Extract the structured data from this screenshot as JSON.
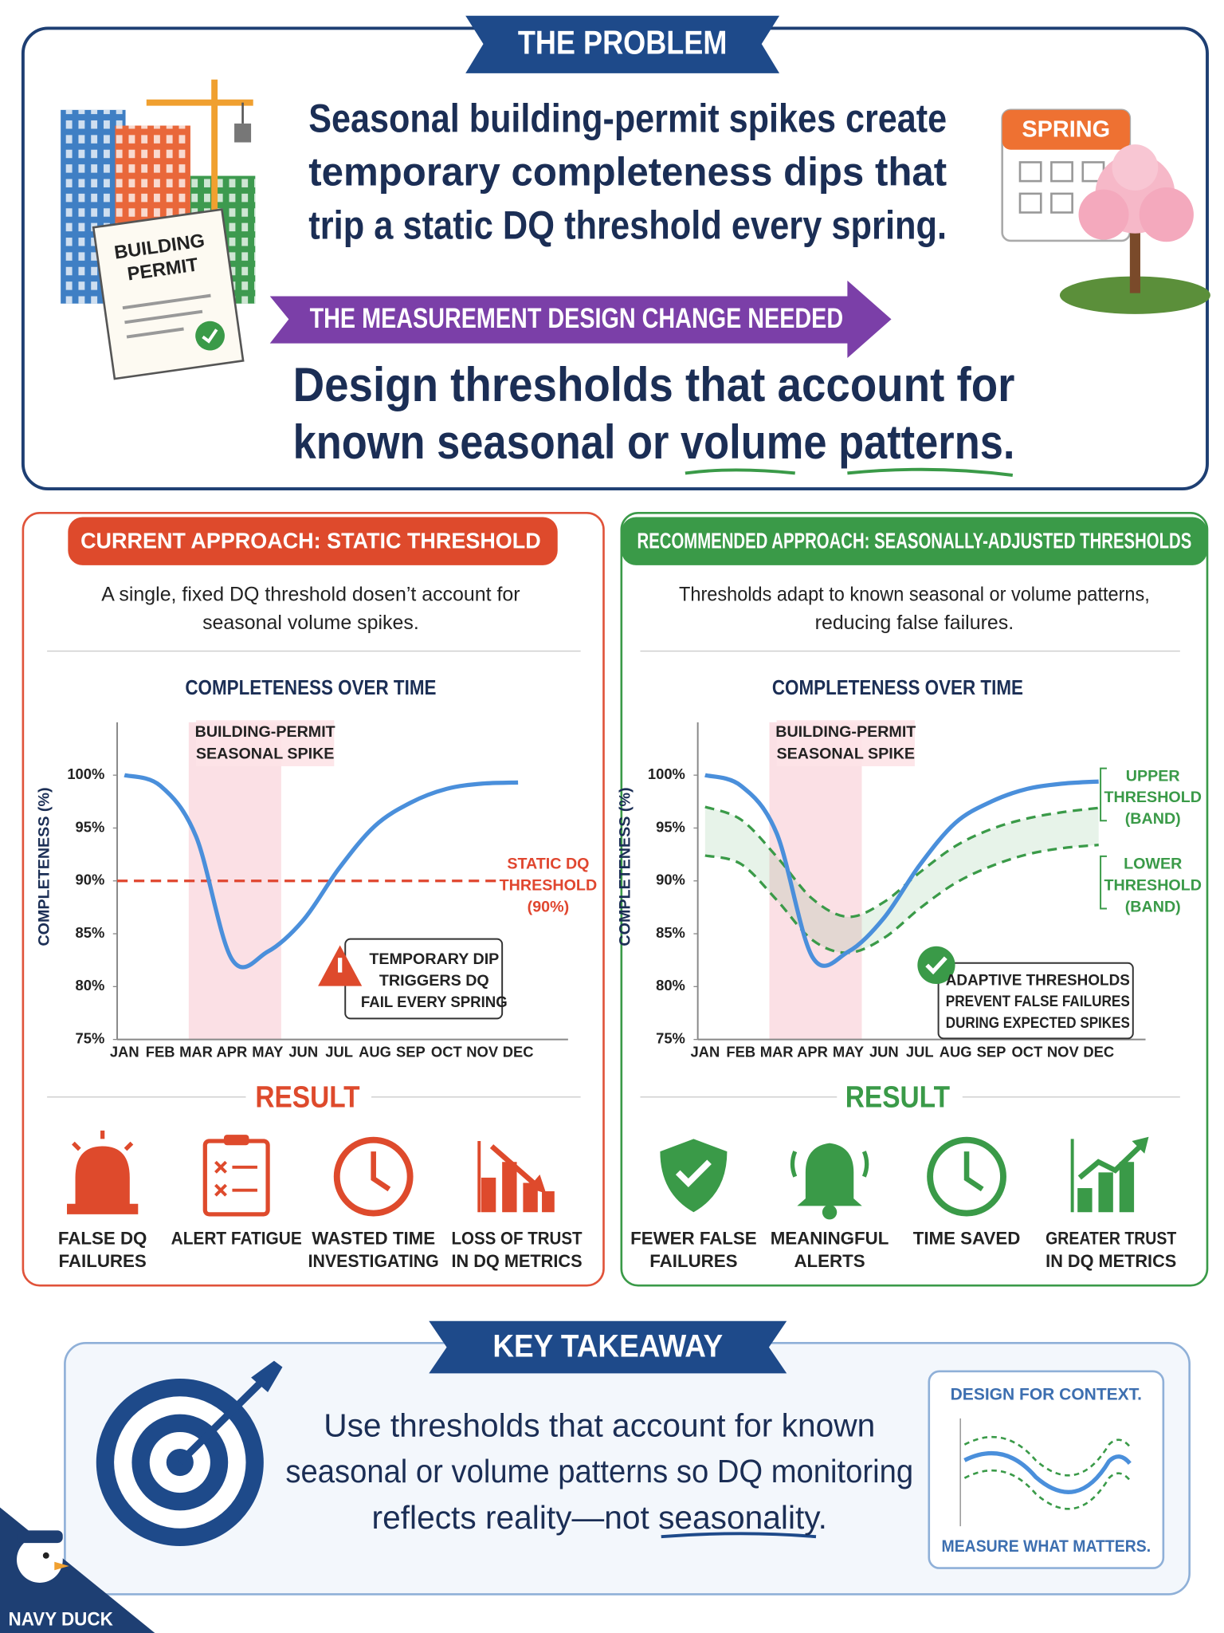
{
  "problem": {
    "banner": "THE PROBLEM",
    "statement": [
      "Seasonal building-permit spikes create",
      "temporary completeness dips that",
      "trip a static DQ threshold every spring."
    ],
    "permit_label": [
      "BUILDING",
      "PERMIT"
    ],
    "calendar_label": "SPRING",
    "change_banner": "THE MEASUREMENT DESIGN CHANGE NEEDED",
    "change": [
      "Design thresholds that account for",
      "known seasonal or volume patterns."
    ]
  },
  "panels": [
    {
      "header": "CURRENT APPROACH: STATIC THRESHOLD",
      "description": [
        "A single, fixed DQ threshold dosen’t account for",
        "seasonal volume spikes."
      ],
      "result_title": "RESULT",
      "results": [
        [
          "FALSE DQ",
          "FAILURES"
        ],
        [
          "ALERT FATIGUE"
        ],
        [
          "WASTED TIME",
          "INVESTIGATING"
        ],
        [
          "LOSS OF TRUST",
          "IN DQ METRICS"
        ]
      ]
    },
    {
      "header": "RECOMMENDED APPROACH: SEASONALLY-ADJUSTED THRESHOLDS",
      "description": [
        "Thresholds adapt to known seasonal or volume patterns,",
        "reducing false failures."
      ],
      "result_title": "RESULT",
      "results": [
        [
          "FEWER FALSE",
          "FAILURES"
        ],
        [
          "MEANINGFUL",
          "ALERTS"
        ],
        [
          "TIME SAVED"
        ],
        [
          "GREATER TRUST",
          "IN DQ METRICS"
        ]
      ]
    }
  ],
  "takeaway": {
    "banner": "KEY TAKEAWAY",
    "text": [
      "Use thresholds that account for known",
      "seasonal or volume patterns so DQ monitoring",
      "reflects reality—not seasonality."
    ],
    "card_top": "DESIGN FOR CONTEXT.",
    "card_bottom": "MEASURE WHAT MATTERS."
  },
  "brand": "NAVY DUCK",
  "chart_data": [
    {
      "type": "line",
      "title": "COMPLETENESS OVER TIME",
      "y_label": "COMPLETENESS (%)",
      "categories": [
        "JAN",
        "FEB",
        "MAR",
        "APR",
        "MAY",
        "JUN",
        "JUL",
        "AUG",
        "SEP",
        "OCT",
        "NOV",
        "DEC"
      ],
      "ylim": [
        75,
        105
      ],
      "yticks": [
        {
          "value": 75,
          "label": "75%"
        },
        {
          "value": 80,
          "label": "80%"
        },
        {
          "value": 85,
          "label": "85%"
        },
        {
          "value": 90,
          "label": "90%"
        },
        {
          "value": 95,
          "label": "95%"
        },
        {
          "value": 100,
          "label": "100%"
        }
      ],
      "series": [
        {
          "color": "#4a8fdb",
          "values": [
            100,
            99,
            94.2,
            82.6,
            83.3,
            86.3,
            91.2,
            95.2,
            97.4,
            98.7,
            99.2,
            99.3
          ]
        }
      ],
      "threshold": {
        "value": 90,
        "label": [
          "STATIC DQ",
          "THRESHOLD",
          "(90%)"
        ],
        "color": "#e0462f"
      },
      "annotations": [
        [
          "BUILDING-PERMIT",
          "SEASONAL SPIKE"
        ],
        [
          "TEMPORARY DIP",
          "TRIGGERS DQ",
          "FAIL EVERY SPRING"
        ]
      ]
    },
    {
      "type": "line",
      "title": "COMPLETENESS OVER TIME",
      "y_label": "COMPLETENESS (%)",
      "categories": [
        "JAN",
        "FEB",
        "MAR",
        "APR",
        "MAY",
        "JUN",
        "JUL",
        "AUG",
        "SEP",
        "OCT",
        "NOV",
        "DEC"
      ],
      "ylim": [
        75,
        105
      ],
      "yticks": [
        {
          "value": 75,
          "label": "75%"
        },
        {
          "value": 80,
          "label": "80%"
        },
        {
          "value": 85,
          "label": "85%"
        },
        {
          "value": 90,
          "label": "90%"
        },
        {
          "value": 95,
          "label": "95%"
        },
        {
          "value": 100,
          "label": "100%"
        }
      ],
      "series": [
        {
          "color": "#4a8fdb",
          "values": [
            100,
            99,
            94.5,
            82.8,
            83.3,
            86.5,
            91.5,
            95.5,
            97.5,
            98.7,
            99.2,
            99.4
          ]
        },
        {
          "label": [
            "UPPER",
            "THRESHOLD",
            "(BAND)"
          ],
          "color": "#3a9a48",
          "dashed": true,
          "values": [
            97,
            95.8,
            92.3,
            88.3,
            86.6,
            88,
            90.8,
            93.3,
            94.9,
            95.9,
            96.5,
            96.9
          ]
        },
        {
          "label": [
            "LOWER",
            "THRESHOLD",
            "(BAND)"
          ],
          "color": "#3a9a48",
          "dashed": true,
          "values": [
            92.4,
            91.6,
            88.2,
            84.4,
            83.2,
            84.6,
            87.4,
            89.8,
            91.4,
            92.5,
            93.1,
            93.4
          ]
        }
      ],
      "annotations": [
        [
          "BUILDING-PERMIT",
          "SEASONAL SPIKE"
        ],
        [
          "ADAPTIVE THRESHOLDS",
          "PREVENT FALSE FAILURES",
          "DURING EXPECTED SPIKES"
        ]
      ]
    }
  ]
}
